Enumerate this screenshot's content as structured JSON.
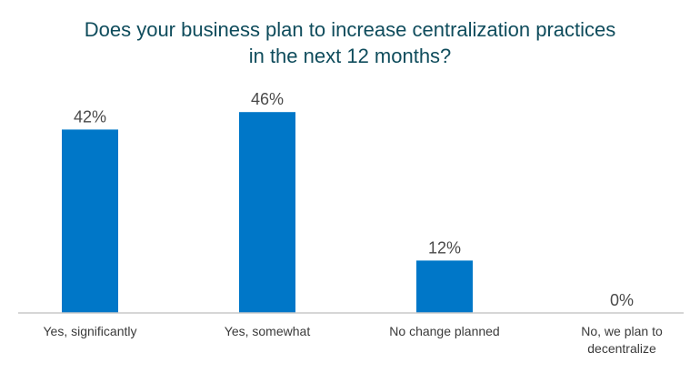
{
  "chart_data": {
    "type": "bar",
    "title_lines": [
      "Does your business plan to increase centralization practices",
      "in the next 12 months?"
    ],
    "categories": [
      [
        "Yes, significantly"
      ],
      [
        "Yes, somewhat"
      ],
      [
        "No change planned"
      ],
      [
        "No, we plan to",
        "decentralize"
      ]
    ],
    "values": [
      42,
      46,
      12,
      0
    ],
    "value_labels": [
      "42%",
      "46%",
      "12%",
      "0%"
    ],
    "ylim": [
      0,
      50
    ],
    "grid": false,
    "legend": "none",
    "bar_color": "#0077c8",
    "axis_color": "#c8c8c8",
    "title_color": "#0f4c5c"
  }
}
